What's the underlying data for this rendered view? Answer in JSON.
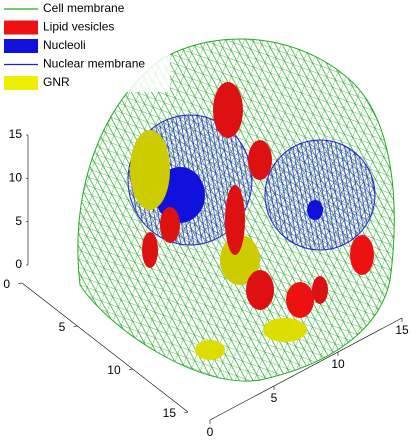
{
  "chart_data": {
    "type": "3d-mesh",
    "series": [
      {
        "name": "Cell membrane",
        "color": "#22aa22",
        "marker": "line"
      },
      {
        "name": "Lipid vesicles",
        "color": "#ee1111",
        "marker": "patch"
      },
      {
        "name": "Nucleoli",
        "color": "#1111dd",
        "marker": "patch"
      },
      {
        "name": "Nuclear membrane",
        "color": "#2222cc",
        "marker": "line"
      },
      {
        "name": "GNR",
        "color": "#eeee00",
        "marker": "patch"
      }
    ],
    "xticks": [
      0,
      5,
      10,
      15
    ],
    "yticks": [
      0,
      5,
      10,
      15
    ],
    "zticks": [
      0,
      5,
      10,
      15
    ]
  }
}
